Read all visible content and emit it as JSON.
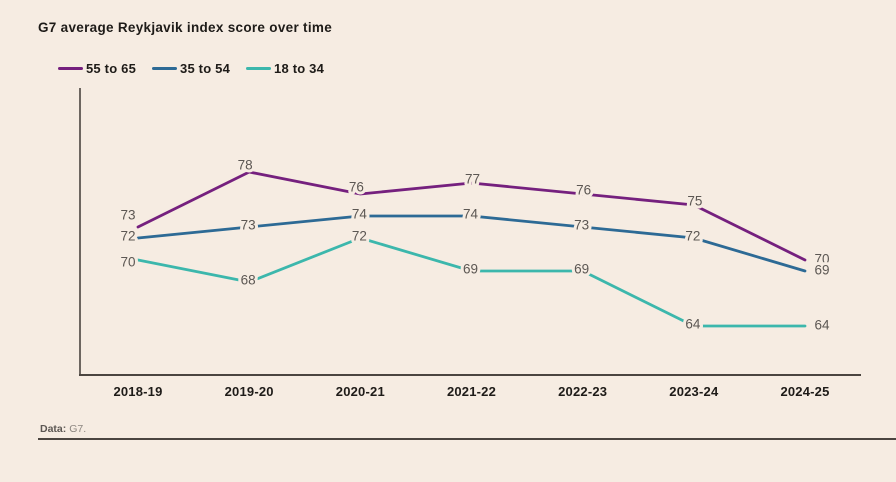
{
  "title": "G7 average Reykjavik index score over time",
  "footer": {
    "label": "Data:",
    "source": "G7."
  },
  "colors": {
    "background": "#f6ece2",
    "axis": "#4b4540",
    "data_label": "#5c5753",
    "tick_label": "#1e1b18"
  },
  "chart_data": {
    "type": "line",
    "title": "G7 average Reykjavik index score over time",
    "categories": [
      "2018-19",
      "2019-20",
      "2020-21",
      "2021-22",
      "2022-23",
      "2023-24",
      "2024-25"
    ],
    "series": [
      {
        "name": "55 to 65",
        "color": "#75207e",
        "values": [
          73,
          78,
          76,
          77,
          76,
          75,
          70
        ]
      },
      {
        "name": "35 to 54",
        "color": "#2d6a95",
        "values": [
          72,
          73,
          74,
          74,
          73,
          72,
          69
        ]
      },
      {
        "name": "18 to 34",
        "color": "#3cb7ac",
        "values": [
          70,
          68,
          72,
          69,
          69,
          64,
          64
        ]
      }
    ],
    "ylim": [
      60,
      80
    ],
    "grid": false,
    "y_axis_ticks": "none",
    "data_labels": true,
    "legend_position": "top-left",
    "source_note": "Data: G7."
  }
}
